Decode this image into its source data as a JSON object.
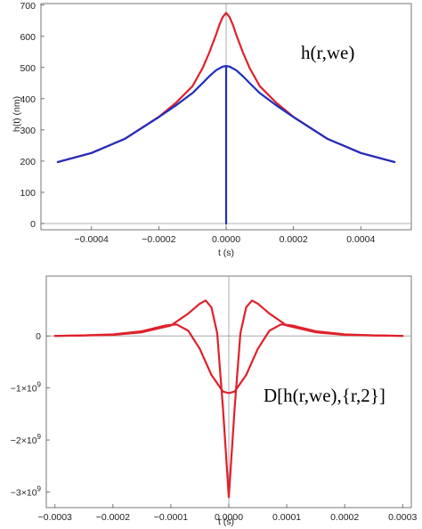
{
  "chart_data": [
    {
      "type": "line",
      "xlabel": "t (s)",
      "ylabel": "h(t) (nm)",
      "annotation": "h(r,we)",
      "xlim": [
        -0.00055,
        0.00055
      ],
      "ylim": [
        -20,
        705
      ],
      "xticks": [
        -0.0004,
        -0.0002,
        0.0,
        0.0002,
        0.0004
      ],
      "xtick_labels": [
        "-0.0004",
        "-0.0002",
        "0.0000",
        "0.0002",
        "0.0004"
      ],
      "yticks": [
        0,
        100,
        200,
        300,
        400,
        500,
        600,
        700
      ],
      "ytick_labels": [
        "0",
        "100",
        "200",
        "300",
        "400",
        "500",
        "600",
        "700"
      ],
      "series": [
        {
          "color": "#e0202a",
          "x": [
            -0.0005,
            -0.0004,
            -0.0003,
            -0.0002,
            -0.00015,
            -0.0001,
            -7e-05,
            -5e-05,
            -3e-05,
            -2e-05,
            -1e-05,
            0,
            1e-05,
            2e-05,
            3e-05,
            5e-05,
            7e-05,
            0.0001,
            0.00015,
            0.0002,
            0.0003,
            0.0004,
            0.0005
          ],
          "y": [
            197,
            226,
            272,
            342,
            386,
            440,
            498,
            548,
            605,
            637,
            662,
            675,
            662,
            637,
            605,
            548,
            498,
            440,
            386,
            342,
            272,
            226,
            197
          ]
        },
        {
          "color": "#1f2fbf",
          "x": [
            -0.0005,
            -0.0004,
            -0.0003,
            -0.0002,
            -0.00015,
            -0.0001,
            -7e-05,
            -5e-05,
            -3e-05,
            -1e-05,
            0,
            0,
            0,
            1e-05,
            3e-05,
            5e-05,
            7e-05,
            0.0001,
            0.00015,
            0.0002,
            0.0003,
            0.0004,
            0.0005
          ],
          "y": [
            197,
            226,
            272,
            341,
            378,
            418,
            450,
            472,
            491,
            503,
            505,
            0,
            505,
            503,
            491,
            472,
            450,
            418,
            378,
            341,
            272,
            226,
            197
          ]
        }
      ]
    },
    {
      "type": "line",
      "xlabel": "t (s)",
      "ylabel": "",
      "annotation": "D[h(r,we),{r,2}]",
      "xlim": [
        -0.000315,
        0.000315
      ],
      "ylim": [
        -3300000000.0,
        1150000000.0
      ],
      "xticks": [
        -0.0003,
        -0.0002,
        -0.0001,
        0.0,
        0.0001,
        0.0002,
        0.0003
      ],
      "xtick_labels": [
        "-0.0003",
        "-0.0002",
        "-0.0001",
        "0.0000",
        "0.0001",
        "0.0002",
        "0.0003"
      ],
      "yticks": [
        0,
        -1000000000.0,
        -2000000000.0,
        -3000000000.0
      ],
      "ytick_labels": [
        {
          "base": "0",
          "exp": ""
        },
        {
          "base": "-1×10",
          "exp": "9"
        },
        {
          "base": "-2×10",
          "exp": "9"
        },
        {
          "base": "-3×10",
          "exp": "9"
        }
      ],
      "series": [
        {
          "color": "#e0202a",
          "x": [
            -0.0003,
            -0.00025,
            -0.0002,
            -0.00015,
            -0.0001,
            -7e-05,
            -5e-05,
            -4e-05,
            -3e-05,
            -2e-05,
            -1e-05,
            0,
            1e-05,
            2e-05,
            3e-05,
            4e-05,
            5e-05,
            7e-05,
            0.0001,
            0.00015,
            0.0002,
            0.00025,
            0.0003
          ],
          "y": [
            0.0,
            10000000.0,
            20000000.0,
            70000000.0,
            200000000.0,
            430000000.0,
            620000000.0,
            680000000.0,
            550000000.0,
            50000000.0,
            -1400000000.0,
            -3100000000.0,
            -1400000000.0,
            50000000.0,
            550000000.0,
            680000000.0,
            620000000.0,
            430000000.0,
            200000000.0,
            70000000.0,
            20000000.0,
            10000000.0,
            0.0
          ]
        },
        {
          "color": "#e0202a",
          "x": [
            -0.0003,
            -0.00025,
            -0.0002,
            -0.00015,
            -0.00011,
            -9e-05,
            -7e-05,
            -5e-05,
            -3e-05,
            -1e-05,
            0,
            1e-05,
            3e-05,
            5e-05,
            7e-05,
            9e-05,
            0.00011,
            0.00015,
            0.0002,
            0.00025,
            0.0003
          ],
          "y": [
            0.0,
            10000000.0,
            30000000.0,
            90000000.0,
            200000000.0,
            220000000.0,
            100000000.0,
            -250000000.0,
            -750000000.0,
            -1070000000.0,
            -1100000000.0,
            -1070000000.0,
            -750000000.0,
            -250000000.0,
            100000000.0,
            220000000.0,
            200000000.0,
            90000000.0,
            30000000.0,
            10000000.0,
            0.0
          ]
        }
      ]
    }
  ]
}
